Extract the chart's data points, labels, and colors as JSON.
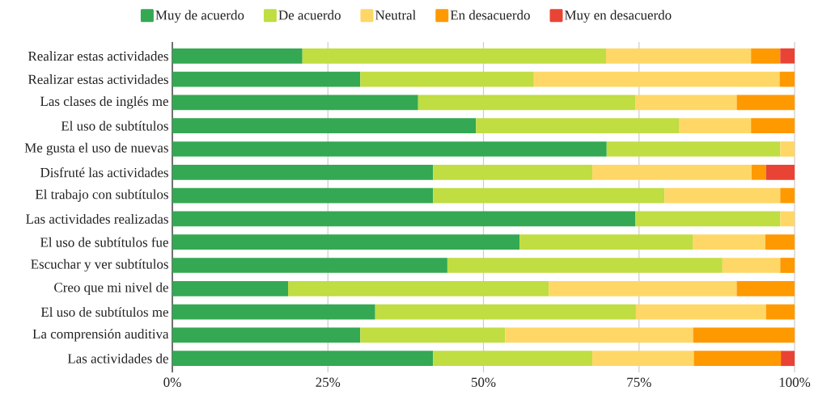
{
  "chart_data": {
    "type": "bar",
    "orientation": "horizontal",
    "stacked": true,
    "categories": [
      "Realizar estas actividades",
      "Realizar estas actividades",
      "Las clases de inglés me",
      "El uso de subtítulos",
      "Me gusta el uso de nuevas",
      "Disfruté las actividades",
      "El trabajo con subtítulos",
      "Las actividades realizadas",
      "El uso de subtítulos fue",
      "Escuchar y ver subtítulos",
      "Creo que mi nivel de",
      "El uso de subtítulos me",
      "La comprensión auditiva",
      "Las actividades de"
    ],
    "series": [
      {
        "name": "Muy de acuerdo",
        "color": "#34a853",
        "values": [
          20.9,
          30.2,
          39.5,
          48.8,
          69.8,
          41.9,
          41.9,
          74.4,
          55.8,
          44.2,
          18.6,
          32.6,
          30.2,
          41.9
        ]
      },
      {
        "name": "De acuerdo",
        "color": "#c0dd42",
        "values": [
          48.8,
          27.9,
          34.9,
          32.6,
          27.9,
          25.6,
          37.2,
          23.3,
          27.9,
          44.2,
          41.9,
          41.9,
          23.3,
          25.6
        ]
      },
      {
        "name": "Neutral",
        "color": "#fed766",
        "values": [
          23.3,
          39.5,
          16.3,
          11.6,
          2.3,
          25.6,
          18.6,
          2.3,
          11.6,
          9.3,
          30.2,
          20.9,
          30.2,
          16.3
        ]
      },
      {
        "name": "En desacuerdo",
        "color": "#ff9900",
        "values": [
          4.7,
          2.4,
          9.3,
          7.0,
          0,
          2.3,
          2.3,
          0,
          4.7,
          2.3,
          9.3,
          4.6,
          16.3,
          14.0
        ]
      },
      {
        "name": "Muy en desacuerdo",
        "color": "#e94335",
        "values": [
          2.3,
          0,
          0,
          0,
          0,
          4.6,
          0,
          0,
          0,
          0,
          0,
          0,
          0,
          2.2
        ]
      }
    ],
    "xlim": [
      0,
      100
    ],
    "xticks": [
      {
        "value": 0,
        "label": "0%"
      },
      {
        "value": 25,
        "label": "25%"
      },
      {
        "value": 50,
        "label": "50%"
      },
      {
        "value": 75,
        "label": "75%"
      },
      {
        "value": 100,
        "label": "100%"
      }
    ],
    "grid": "x",
    "legend": "top"
  }
}
